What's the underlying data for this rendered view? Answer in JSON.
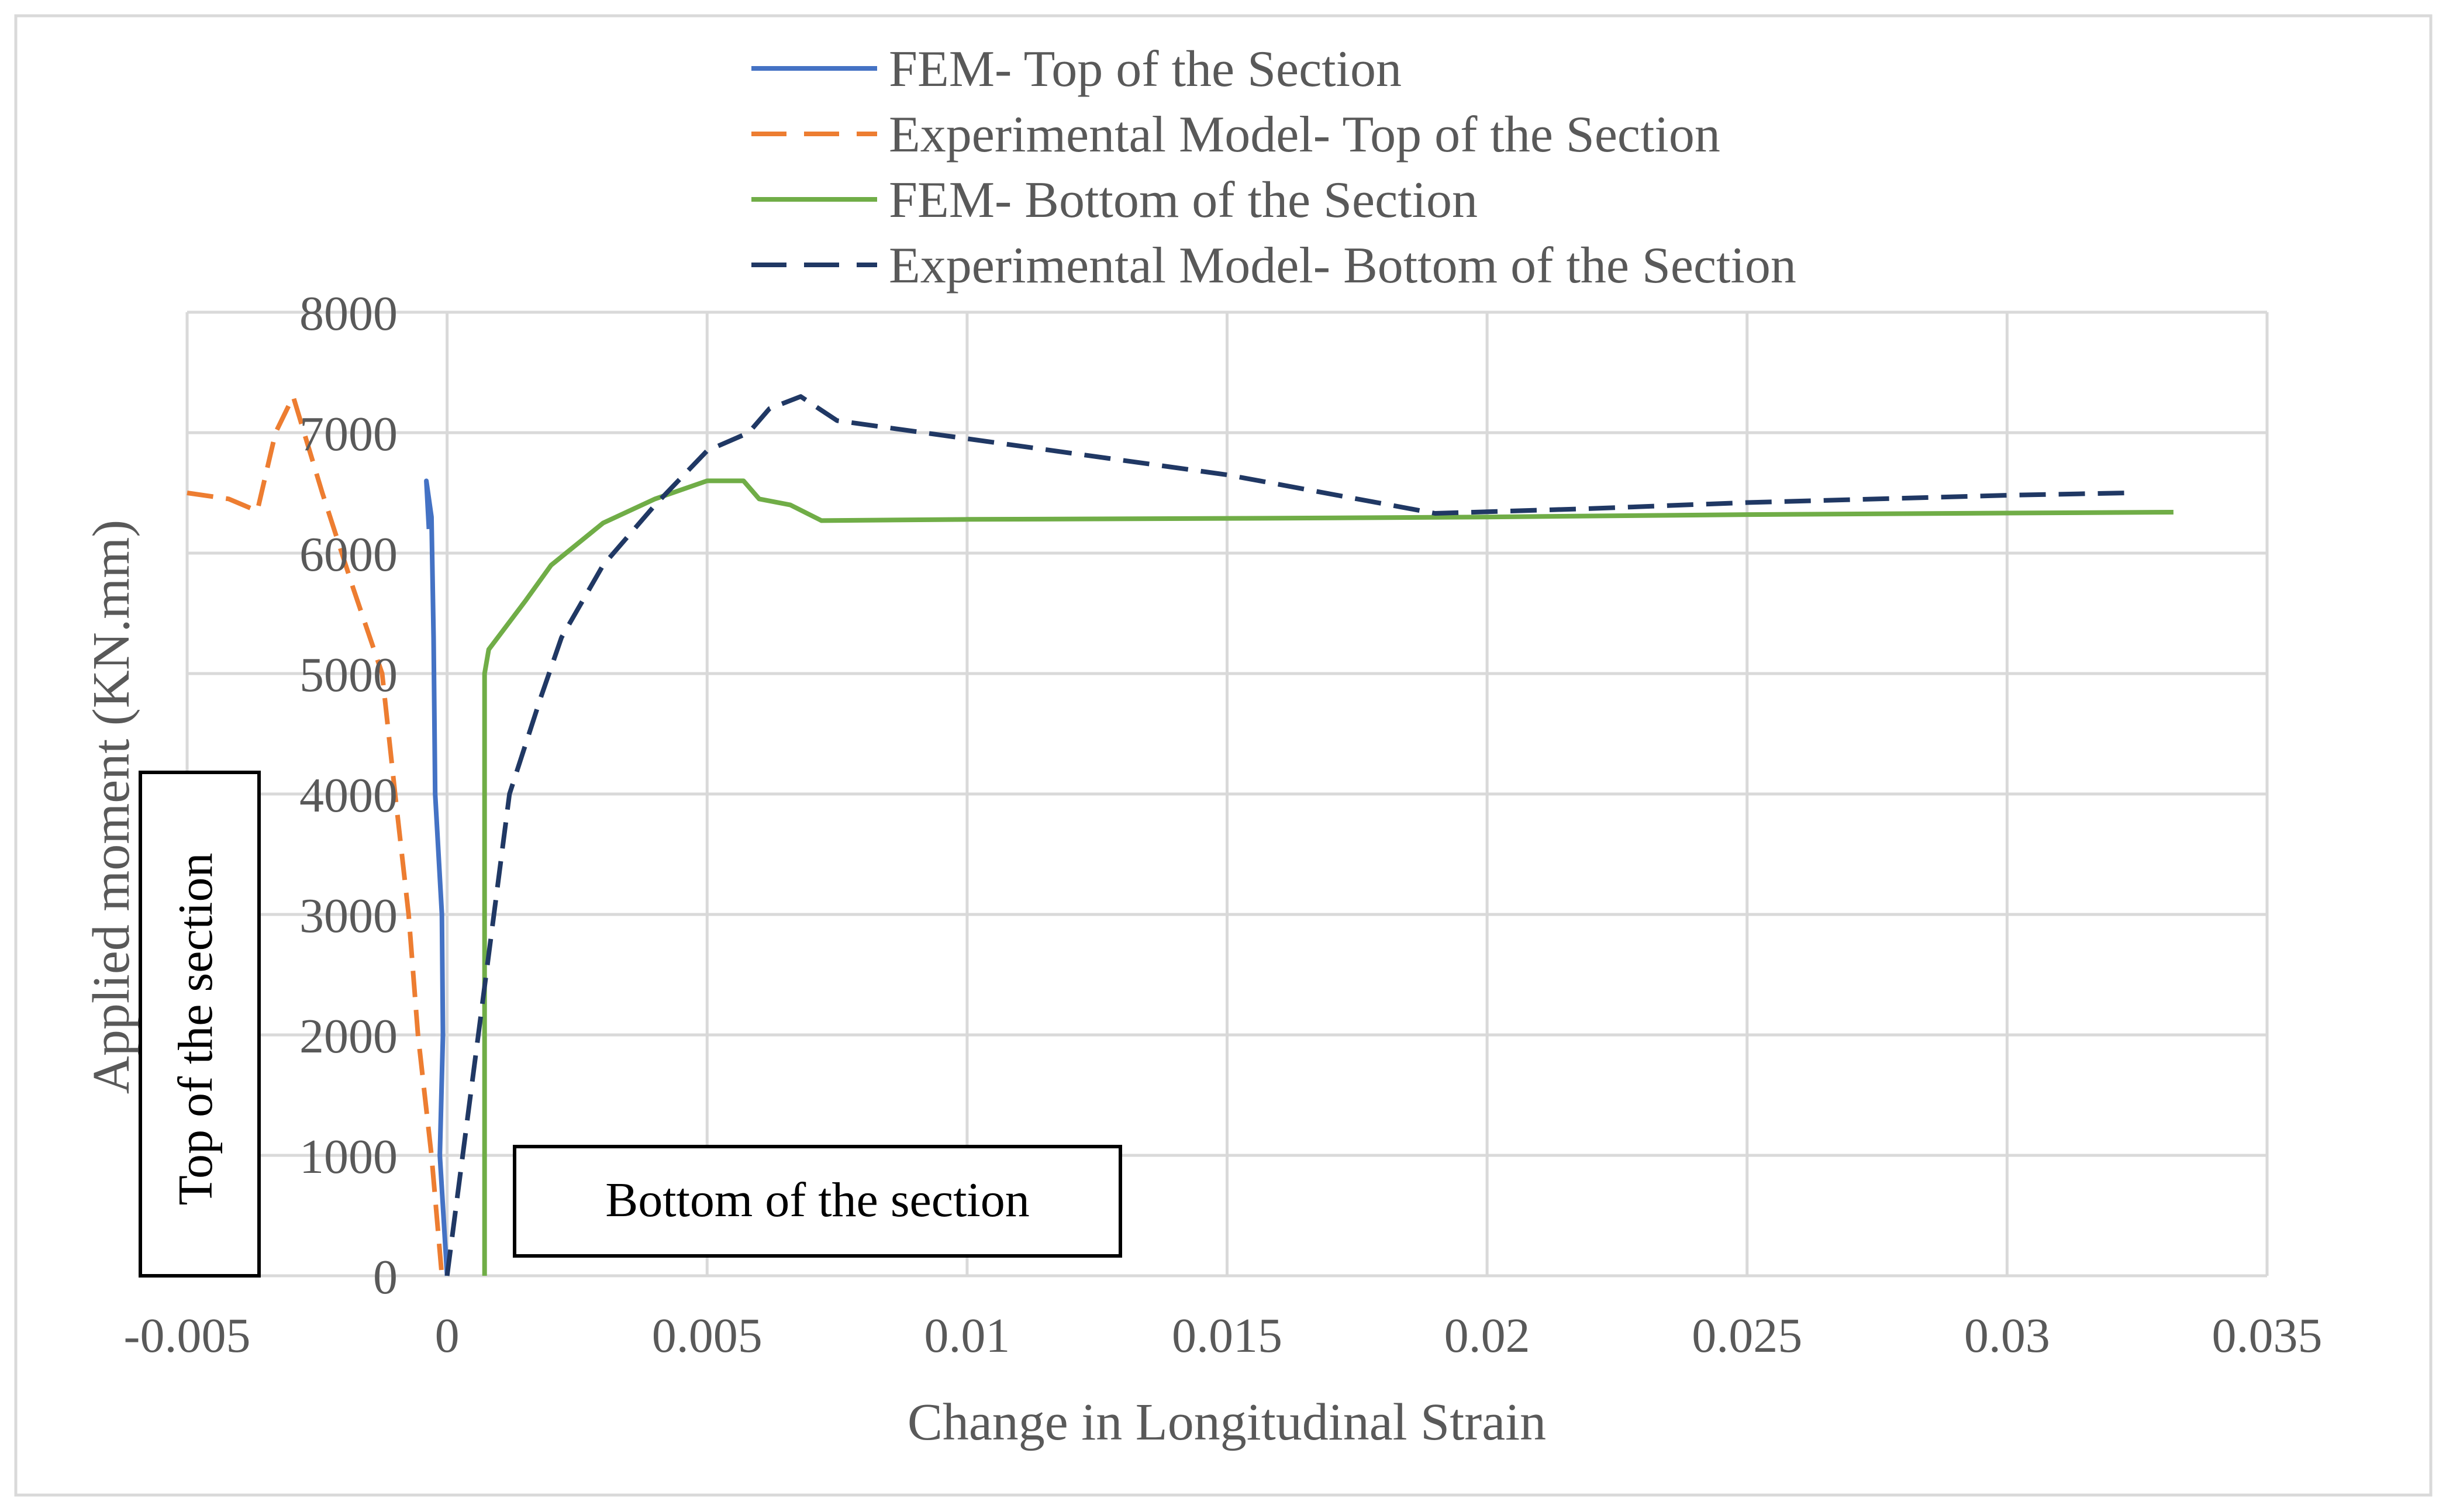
{
  "chart_data": {
    "type": "line",
    "title": "",
    "xlabel": "Change in Longitudinal Strain",
    "ylabel": "Applied moment (KN.mm)",
    "xlim": [
      -0.005,
      0.035
    ],
    "ylim": [
      0,
      8000
    ],
    "x_ticks": [
      -0.005,
      0,
      0.005,
      0.01,
      0.015,
      0.02,
      0.025,
      0.03,
      0.035
    ],
    "x_tick_labels": [
      "-0.005",
      "0",
      "0.005",
      "0.01",
      "0.015",
      "0.02",
      "0.025",
      "0.03",
      "0.035"
    ],
    "y_ticks": [
      0,
      1000,
      2000,
      3000,
      4000,
      5000,
      6000,
      7000,
      8000
    ],
    "y_tick_labels": [
      "0",
      "1000",
      "2000",
      "3000",
      "4000",
      "5000",
      "6000",
      "7000",
      "8000"
    ],
    "grid": true,
    "legend_position": "top",
    "annotations": [
      "Top of the section",
      "Bottom of the section"
    ],
    "series": [
      {
        "name": "FEM- Top of the Section",
        "color": "#4472C4",
        "dash": "solid",
        "points": [
          [
            0,
            0
          ],
          [
            -0.00014,
            1000
          ],
          [
            -8e-05,
            2000
          ],
          [
            -0.0001,
            3000
          ],
          [
            -0.00023,
            4000
          ],
          [
            -0.00026,
            5300
          ],
          [
            -0.0003,
            6300
          ],
          [
            -0.0004,
            6600
          ],
          [
            -0.00035,
            6200
          ]
        ]
      },
      {
        "name": "Experimental Model- Top of the Section",
        "color": "#ED7D31",
        "dash": "dashed",
        "points": [
          [
            -0.005,
            6500
          ],
          [
            -0.0042,
            6450
          ],
          [
            -0.00365,
            6350
          ],
          [
            -0.0033,
            7000
          ],
          [
            -0.00296,
            7300
          ],
          [
            -0.0024,
            6500
          ],
          [
            -0.0018,
            5700
          ],
          [
            -0.00125,
            5000
          ],
          [
            -0.001,
            4000
          ],
          [
            -0.00074,
            3000
          ],
          [
            -0.00056,
            2000
          ],
          [
            -0.0003,
            1000
          ],
          [
            -0.0001,
            0
          ]
        ]
      },
      {
        "name": "FEM- Bottom of the Section",
        "color": "#70AD47",
        "dash": "solid",
        "points": [
          [
            0.00072,
            0
          ],
          [
            0.00072,
            5000
          ],
          [
            0.0008,
            5200
          ],
          [
            0.0015,
            5600
          ],
          [
            0.002,
            5900
          ],
          [
            0.003,
            6250
          ],
          [
            0.004,
            6450
          ],
          [
            0.005,
            6600
          ],
          [
            0.0057,
            6600
          ],
          [
            0.006,
            6450
          ],
          [
            0.0066,
            6400
          ],
          [
            0.0072,
            6270
          ],
          [
            0.01,
            6280
          ],
          [
            0.016,
            6290
          ],
          [
            0.02,
            6300
          ],
          [
            0.025,
            6320
          ],
          [
            0.029,
            6330
          ],
          [
            0.0332,
            6340
          ]
        ]
      },
      {
        "name": "Experimental Model- Bottom of the Section",
        "color": "#203864",
        "dash": "dashed",
        "points": [
          [
            0,
            0
          ],
          [
            0.0003,
            1000
          ],
          [
            0.0006,
            2000
          ],
          [
            0.0009,
            3000
          ],
          [
            0.0012,
            4000
          ],
          [
            0.0018,
            4800
          ],
          [
            0.0022,
            5300
          ],
          [
            0.003,
            5900
          ],
          [
            0.004,
            6400
          ],
          [
            0.005,
            6850
          ],
          [
            0.0058,
            7000
          ],
          [
            0.0062,
            7200
          ],
          [
            0.0068,
            7300
          ],
          [
            0.0075,
            7100
          ],
          [
            0.01,
            6950
          ],
          [
            0.015,
            6650
          ],
          [
            0.019,
            6330
          ],
          [
            0.022,
            6370
          ],
          [
            0.025,
            6420
          ],
          [
            0.03,
            6480
          ],
          [
            0.0323,
            6500
          ]
        ]
      }
    ]
  }
}
